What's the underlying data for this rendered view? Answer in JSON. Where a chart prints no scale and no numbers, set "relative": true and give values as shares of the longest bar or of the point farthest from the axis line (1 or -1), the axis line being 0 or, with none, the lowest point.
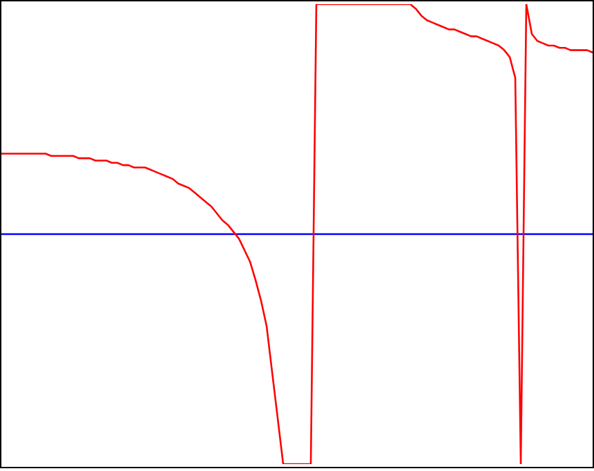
{
  "chart_data": {
    "type": "line",
    "relative": true,
    "legend": false,
    "ref_lines": [
      {
        "axis": "y",
        "value": 0,
        "color": "#0000ff"
      }
    ],
    "marker": "none",
    "line_style": "solid",
    "categories": [
      null,
      null,
      null,
      null,
      null,
      null,
      null,
      null,
      null,
      null,
      null,
      null,
      null,
      null,
      null,
      null,
      null,
      null,
      null,
      null,
      null,
      null,
      null,
      null,
      null,
      null,
      null,
      null,
      null,
      null,
      null,
      null,
      null,
      null,
      null,
      null,
      null,
      null,
      null,
      null,
      null,
      null,
      null,
      null,
      null,
      null,
      null,
      null,
      null,
      null,
      null,
      null,
      null,
      null,
      null,
      null,
      null,
      null,
      null,
      null,
      null,
      null,
      null,
      null,
      null,
      null,
      null,
      null,
      null,
      null,
      null,
      null,
      null,
      null,
      null,
      null,
      null,
      null,
      null,
      null,
      null,
      null,
      null,
      null,
      null,
      null,
      null,
      null,
      null,
      null,
      null,
      null,
      null,
      null,
      null,
      null,
      null,
      null,
      null,
      null,
      null,
      null,
      null,
      null,
      null,
      null,
      null,
      null
    ],
    "series": [
      {
        "color": "#ff0000",
        "values": [
          0.35,
          0.35,
          0.35,
          0.35,
          0.35,
          0.35,
          0.35,
          0.35,
          0.35,
          0.34,
          0.34,
          0.34,
          0.34,
          0.34,
          0.33,
          0.33,
          0.33,
          0.32,
          0.32,
          0.32,
          0.31,
          0.31,
          0.3,
          0.3,
          0.29,
          0.29,
          0.29,
          0.28,
          0.27,
          0.26,
          0.25,
          0.24,
          0.22,
          0.21,
          0.2,
          0.18,
          0.16,
          0.14,
          0.12,
          0.09,
          0.06,
          0.04,
          0.01,
          -0.02,
          -0.07,
          -0.12,
          -0.2,
          -0.29,
          -0.4,
          -0.6,
          -0.8,
          -1,
          null,
          null,
          null,
          null,
          -1,
          1,
          null,
          null,
          null,
          null,
          null,
          null,
          null,
          null,
          null,
          null,
          null,
          null,
          null,
          null,
          null,
          null,
          1,
          0.98,
          0.95,
          0.93,
          0.92,
          0.91,
          0.9,
          0.89,
          0.89,
          0.88,
          0.87,
          0.86,
          0.86,
          0.85,
          0.84,
          0.83,
          0.82,
          0.8,
          0.77,
          0.68,
          -1,
          1,
          0.87,
          0.84,
          0.83,
          0.82,
          0.82,
          0.81,
          0.81,
          0.8,
          0.8,
          0.8,
          0.8,
          0.79
        ]
      }
    ]
  }
}
